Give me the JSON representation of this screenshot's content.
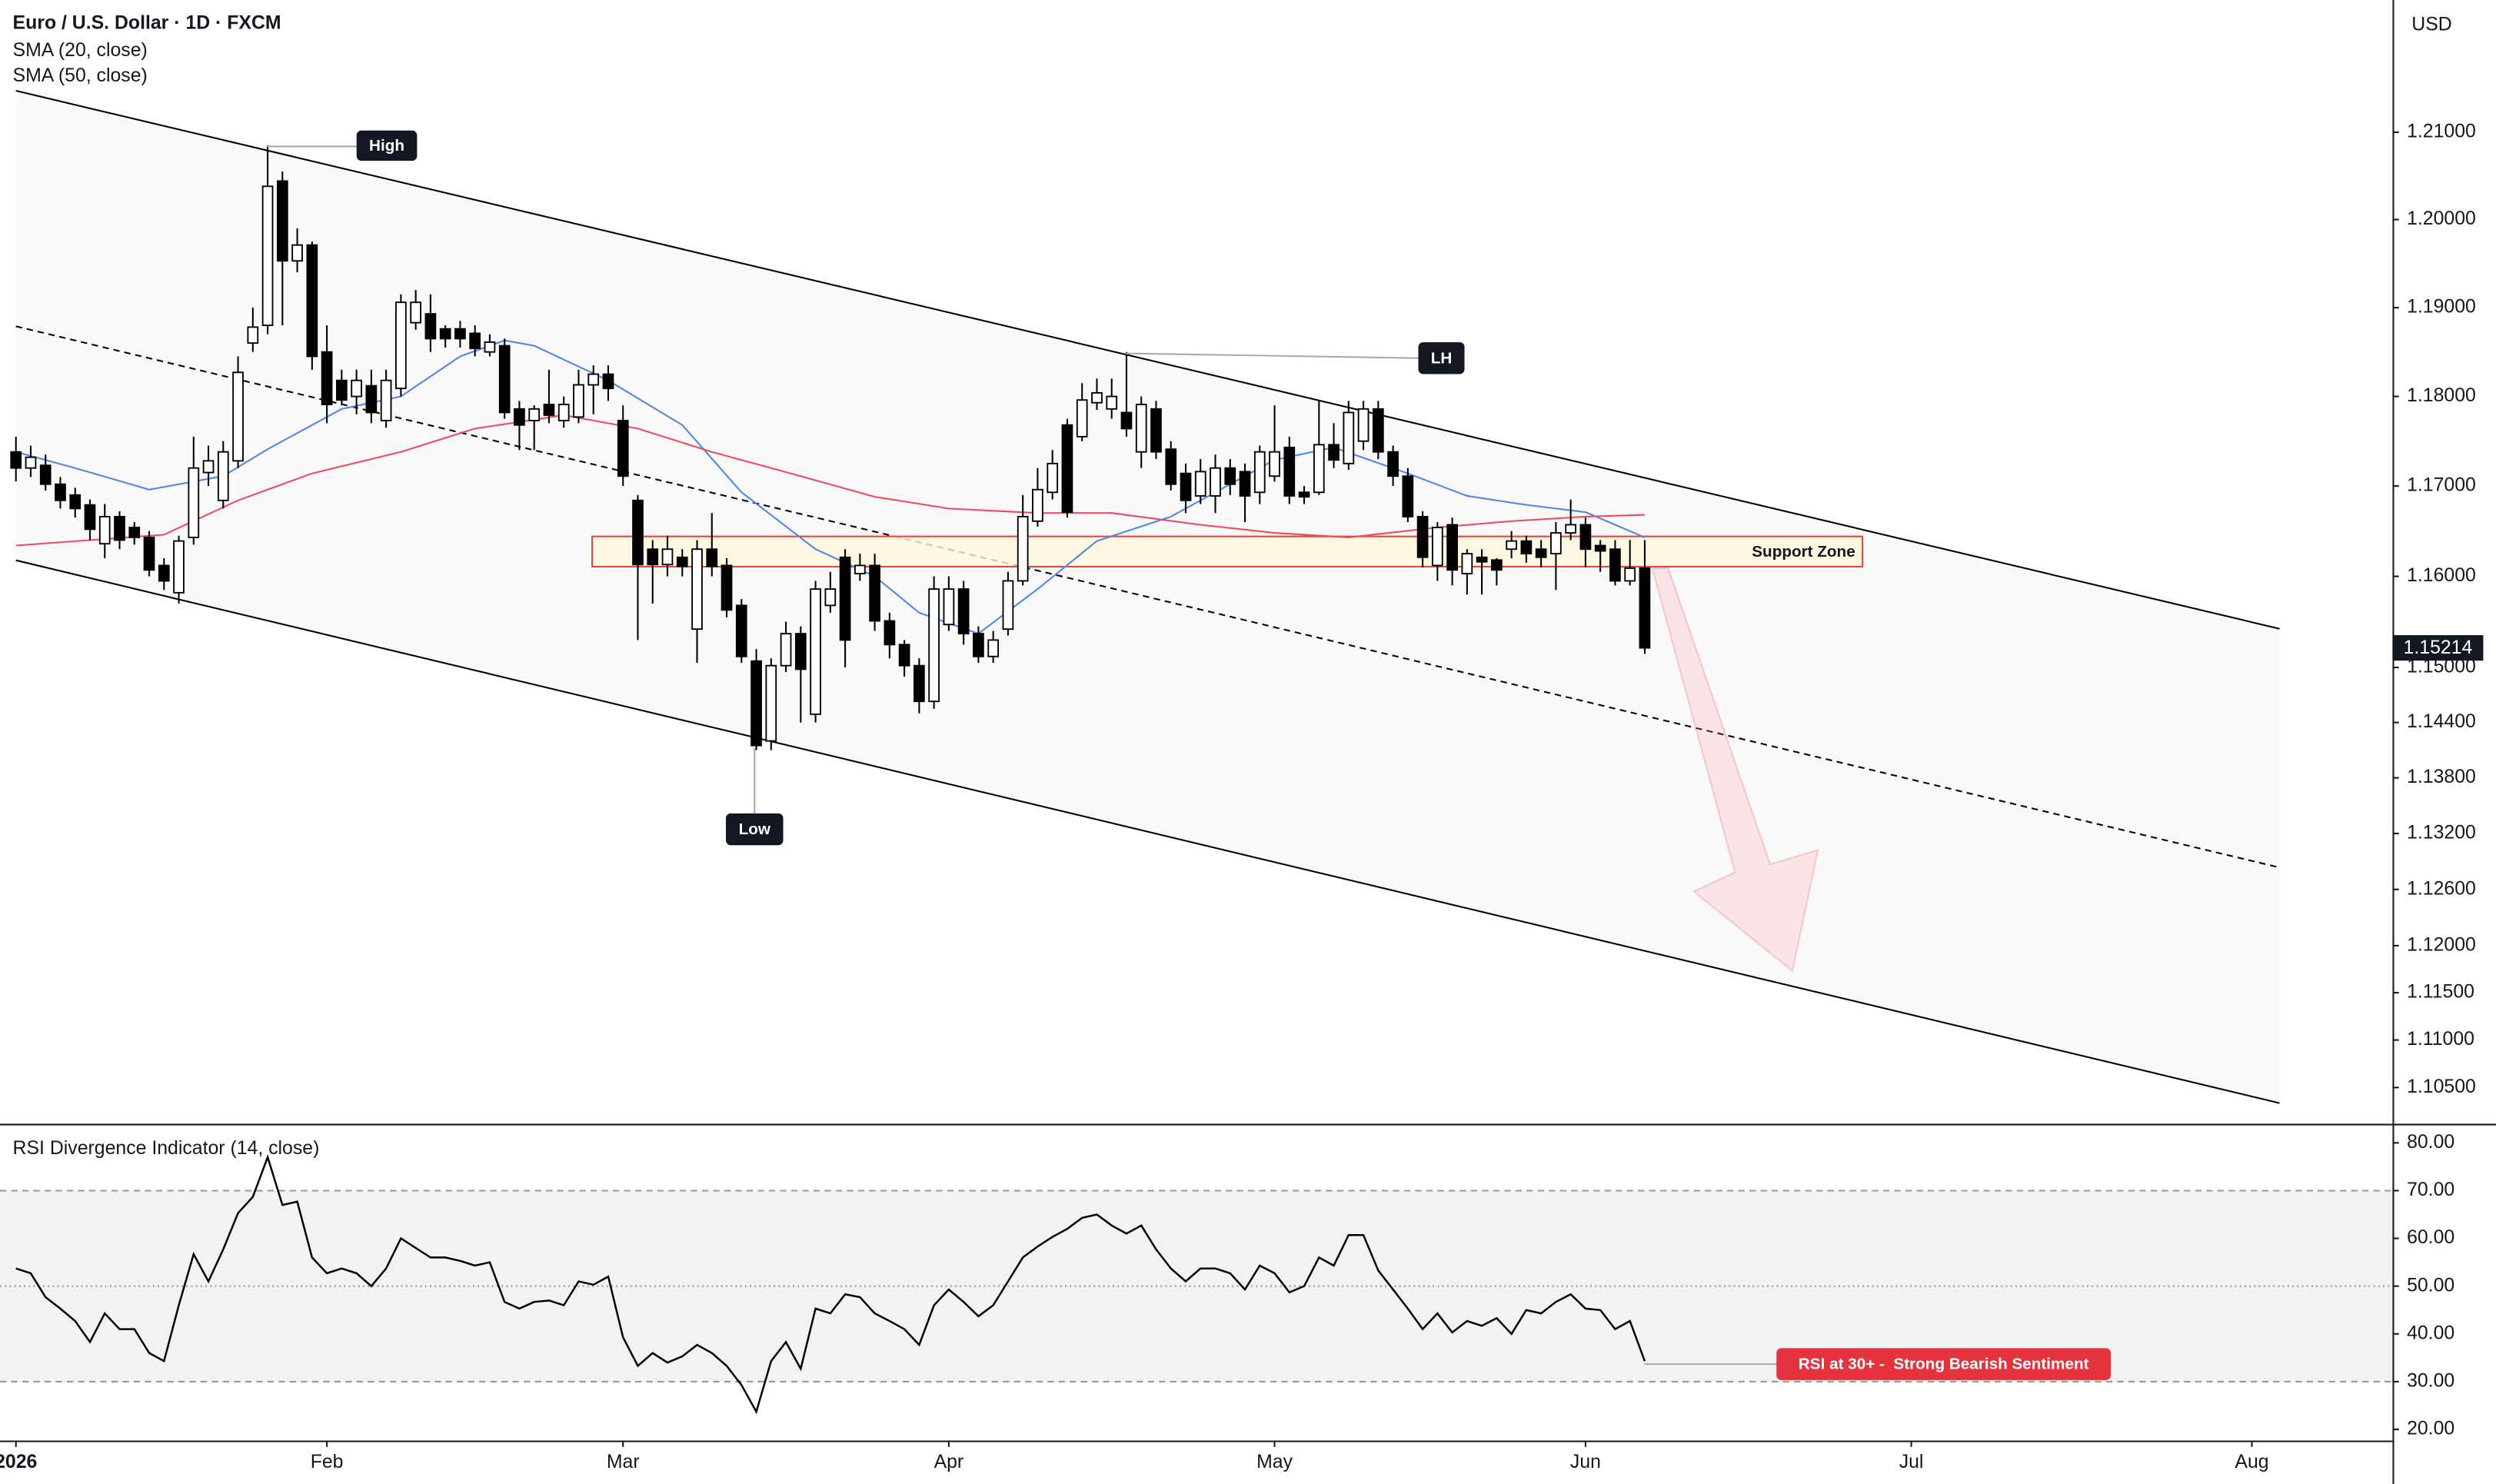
{
  "chart_data": [
    {
      "type": "candlestick",
      "title": "Euro / U.S. Dollar · 1D · FXCM",
      "y_label": "USD",
      "xlim": [
        -1.075,
        160.5
      ],
      "xticks": [
        {
          "value": 0,
          "label": "2026"
        },
        {
          "value": 21,
          "label": "Feb"
        },
        {
          "value": 41,
          "label": "Mar"
        },
        {
          "value": 63,
          "label": "Apr"
        },
        {
          "value": 85,
          "label": "May"
        },
        {
          "value": 106,
          "label": "Jun"
        },
        {
          "value": 128,
          "label": "Jul"
        },
        {
          "value": 151,
          "label": "Aug"
        }
      ],
      "ylim": [
        1.1012,
        1.2253
      ],
      "log_scale": true,
      "yticks": [
        {
          "value": 1.21,
          "label": "1.21000"
        },
        {
          "value": 1.2,
          "label": "1.20000"
        },
        {
          "value": 1.19,
          "label": "1.19000"
        },
        {
          "value": 1.18,
          "label": "1.18000"
        },
        {
          "value": 1.17,
          "label": "1.17000"
        },
        {
          "value": 1.16,
          "label": "1.16000"
        },
        {
          "value": 1.15,
          "label": "1.15000"
        },
        {
          "value": 1.144,
          "label": "1.14400"
        },
        {
          "value": 1.138,
          "label": "1.13800"
        },
        {
          "value": 1.132,
          "label": "1.13200"
        },
        {
          "value": 1.126,
          "label": "1.12600"
        },
        {
          "value": 1.12,
          "label": "1.12000"
        },
        {
          "value": 1.115,
          "label": "1.11500"
        },
        {
          "value": 1.11,
          "label": "1.11000"
        },
        {
          "value": 1.105,
          "label": "1.10500"
        }
      ],
      "up_color": "#ffffff",
      "down_color": "#000000",
      "open": [
        1.1738,
        1.172,
        1.1723,
        1.1702,
        1.169,
        1.1679,
        1.1636,
        1.1666,
        1.1654,
        1.1643,
        1.1612,
        1.1582,
        1.1643,
        1.1715,
        1.1684,
        1.1728,
        1.186,
        1.188,
        1.2044,
        1.1953,
        1.1971,
        1.185,
        1.1818,
        1.18,
        1.1812,
        1.1773,
        1.1809,
        1.1883,
        1.1893,
        1.1876,
        1.1876,
        1.1871,
        1.185,
        1.1857,
        1.1786,
        1.1773,
        1.1791,
        1.1773,
        1.1777,
        1.1813,
        1.1825,
        1.1773,
        1.1684,
        1.163,
        1.1613,
        1.1621,
        1.1542,
        1.163,
        1.1612,
        1.1568,
        1.1507,
        1.142,
        1.1502,
        1.1537,
        1.1449,
        1.1568,
        1.1621,
        1.1603,
        1.1612,
        1.1551,
        1.1525,
        1.1502,
        1.1463,
        1.1547,
        1.1586,
        1.1537,
        1.1512,
        1.1542,
        1.1595,
        1.1661,
        1.1693,
        1.1768,
        1.1755,
        1.1793,
        1.1786,
        1.1782,
        1.1738,
        1.1786,
        1.1741,
        1.1714,
        1.1689,
        1.1689,
        1.172,
        1.1716,
        1.1693,
        1.1711,
        1.1743,
        1.1693,
        1.1693,
        1.1746,
        1.1725,
        1.175,
        1.1786,
        1.1738,
        1.1711,
        1.1666,
        1.1612,
        1.1657,
        1.1603,
        1.1621,
        1.1618,
        1.163,
        1.1639,
        1.163,
        1.1625,
        1.1648,
        1.1657,
        1.1634,
        1.163,
        1.1595,
        1.1609
      ],
      "high": [
        1.1755,
        1.1745,
        1.1735,
        1.171,
        1.1698,
        1.1685,
        1.168,
        1.1672,
        1.166,
        1.165,
        1.162,
        1.1645,
        1.1755,
        1.1745,
        1.175,
        1.1845,
        1.19,
        1.2085,
        1.2055,
        1.199,
        1.1975,
        1.188,
        1.183,
        1.183,
        1.183,
        1.183,
        1.1915,
        1.192,
        1.1915,
        1.188,
        1.1885,
        1.188,
        1.187,
        1.1865,
        1.1795,
        1.179,
        1.183,
        1.18,
        1.183,
        1.1835,
        1.1835,
        1.179,
        1.169,
        1.164,
        1.1645,
        1.163,
        1.164,
        1.167,
        1.162,
        1.1575,
        1.152,
        1.151,
        1.155,
        1.1545,
        1.1595,
        1.1605,
        1.163,
        1.1625,
        1.1625,
        1.156,
        1.153,
        1.151,
        1.16,
        1.16,
        1.1595,
        1.1545,
        1.154,
        1.1605,
        1.169,
        1.172,
        1.174,
        1.1775,
        1.1815,
        1.182,
        1.182,
        1.185,
        1.18,
        1.1795,
        1.175,
        1.1725,
        1.173,
        1.1735,
        1.173,
        1.1725,
        1.1745,
        1.179,
        1.1755,
        1.17,
        1.1795,
        1.177,
        1.1795,
        1.1795,
        1.1795,
        1.1745,
        1.172,
        1.1672,
        1.166,
        1.1665,
        1.163,
        1.163,
        1.162,
        1.165,
        1.1645,
        1.164,
        1.166,
        1.1685,
        1.1665,
        1.164,
        1.164,
        1.164,
        1.164
      ],
      "low": [
        1.1705,
        1.171,
        1.1695,
        1.1675,
        1.1665,
        1.164,
        1.162,
        1.163,
        1.1635,
        1.16,
        1.1585,
        1.157,
        1.1635,
        1.17,
        1.1675,
        1.172,
        1.185,
        1.187,
        1.188,
        1.194,
        1.183,
        1.177,
        1.179,
        1.178,
        1.177,
        1.1765,
        1.18,
        1.1875,
        1.185,
        1.1855,
        1.1855,
        1.1845,
        1.1845,
        1.1775,
        1.174,
        1.174,
        1.177,
        1.1765,
        1.177,
        1.178,
        1.1795,
        1.17,
        1.153,
        1.157,
        1.16,
        1.16,
        1.1505,
        1.16,
        1.1555,
        1.1505,
        1.141,
        1.141,
        1.1495,
        1.144,
        1.144,
        1.156,
        1.15,
        1.1595,
        1.154,
        1.151,
        1.149,
        1.145,
        1.1455,
        1.154,
        1.1525,
        1.1505,
        1.1505,
        1.1535,
        1.159,
        1.1655,
        1.1685,
        1.1665,
        1.175,
        1.1785,
        1.1775,
        1.1755,
        1.172,
        1.173,
        1.1695,
        1.167,
        1.168,
        1.167,
        1.169,
        1.166,
        1.168,
        1.1705,
        1.168,
        1.168,
        1.169,
        1.172,
        1.1718,
        1.174,
        1.173,
        1.17,
        1.166,
        1.161,
        1.1595,
        1.159,
        1.158,
        1.158,
        1.159,
        1.162,
        1.1615,
        1.161,
        1.1585,
        1.164,
        1.161,
        1.1605,
        1.159,
        1.159,
        1.1515
      ],
      "close": [
        1.172,
        1.1732,
        1.1702,
        1.1684,
        1.1675,
        1.1652,
        1.1666,
        1.164,
        1.1643,
        1.1607,
        1.1595,
        1.1639,
        1.172,
        1.1728,
        1.1738,
        1.1827,
        1.1878,
        1.2038,
        1.1953,
        1.1971,
        1.1845,
        1.1791,
        1.1796,
        1.1818,
        1.1782,
        1.1818,
        1.1906,
        1.1906,
        1.1865,
        1.1865,
        1.1865,
        1.1854,
        1.1861,
        1.1782,
        1.1768,
        1.1786,
        1.1779,
        1.1791,
        1.1813,
        1.1825,
        1.1809,
        1.1711,
        1.1613,
        1.1613,
        1.163,
        1.1611,
        1.163,
        1.1611,
        1.1563,
        1.1512,
        1.1415,
        1.1502,
        1.1537,
        1.1498,
        1.1586,
        1.1586,
        1.153,
        1.1612,
        1.1551,
        1.1525,
        1.1502,
        1.1463,
        1.1586,
        1.1586,
        1.1537,
        1.1512,
        1.153,
        1.1595,
        1.1666,
        1.1696,
        1.1725,
        1.1671,
        1.1796,
        1.1804,
        1.18,
        1.1764,
        1.1791,
        1.1738,
        1.1702,
        1.1684,
        1.1716,
        1.172,
        1.1702,
        1.1689,
        1.1738,
        1.1738,
        1.1689,
        1.1688,
        1.1746,
        1.1729,
        1.1782,
        1.1786,
        1.1738,
        1.1711,
        1.1666,
        1.1621,
        1.1654,
        1.1607,
        1.1625,
        1.1616,
        1.1607,
        1.1639,
        1.1625,
        1.1621,
        1.1648,
        1.1657,
        1.163,
        1.1628,
        1.1595,
        1.1609,
        1.15214
      ],
      "series": [
        {
          "name": "SMA (20, close)",
          "color": "#4f86e8",
          "x": [
            0,
            4,
            9,
            14,
            17,
            22,
            26,
            30,
            33,
            35,
            40,
            45,
            49,
            54,
            58,
            61,
            65,
            69,
            73,
            78,
            82,
            85,
            89,
            94,
            98,
            102,
            106,
            110
          ],
          "values": [
            1.1738,
            1.172,
            1.1696,
            1.1711,
            1.1741,
            1.1786,
            1.18,
            1.1845,
            1.1863,
            1.1857,
            1.1818,
            1.1768,
            1.1693,
            1.163,
            1.16,
            1.156,
            1.1537,
            1.1586,
            1.1639,
            1.1666,
            1.1702,
            1.1729,
            1.1743,
            1.1714,
            1.1689,
            1.1679,
            1.1671,
            1.1643
          ]
        },
        {
          "name": "SMA (50, close)",
          "color": "#ee4b5b",
          "x": [
            0,
            10,
            15,
            20,
            26,
            31,
            37,
            42,
            47,
            53,
            58,
            63,
            69,
            74,
            80,
            85,
            90,
            96,
            101,
            106,
            110
          ],
          "values": [
            1.1634,
            1.1646,
            1.1684,
            1.1714,
            1.1738,
            1.1764,
            1.1779,
            1.1764,
            1.1738,
            1.1711,
            1.1688,
            1.1675,
            1.167,
            1.167,
            1.1657,
            1.1648,
            1.1643,
            1.1654,
            1.1661,
            1.1666,
            1.1668
          ]
        }
      ],
      "annotations": [
        "High",
        "LH",
        "Low",
        "Support Zone"
      ]
    },
    {
      "type": "line",
      "title": "RSI Divergence Indicator (14, close)",
      "xlim": [
        -1.075,
        160.5
      ],
      "ylim": [
        17.67,
        84
      ],
      "yticks": [
        {
          "value": 80,
          "label": "80.00"
        },
        {
          "value": 70,
          "label": "70.00"
        },
        {
          "value": 60,
          "label": "60.00"
        },
        {
          "value": 50,
          "label": "50.00"
        },
        {
          "value": 40,
          "label": "40.00"
        },
        {
          "value": 30,
          "label": "30.00"
        },
        {
          "value": 20,
          "label": "20.00"
        }
      ],
      "series": [
        {
          "color": "#000000",
          "values": [
            53.7,
            52.7,
            47.7,
            45.3,
            42.7,
            38.3,
            44.3,
            41,
            41,
            36,
            34.3,
            46,
            56.7,
            51,
            57.7,
            65.3,
            68.7,
            77,
            67,
            67.7,
            56,
            52.7,
            53.7,
            52.7,
            50,
            53.7,
            60,
            58,
            56,
            56,
            55.3,
            54.3,
            55,
            46.7,
            45.3,
            46.7,
            47,
            46,
            51,
            50.3,
            52,
            39.3,
            33.3,
            36,
            34,
            35.3,
            37.7,
            36,
            33.3,
            29.3,
            23.7,
            34.3,
            38.3,
            32.7,
            45.3,
            44.3,
            48.3,
            47.7,
            44.3,
            42.7,
            41,
            37.7,
            46,
            49.3,
            46.7,
            43.7,
            46,
            51,
            56,
            58.3,
            60.3,
            62,
            64.3,
            65,
            62.7,
            61,
            62.7,
            57.7,
            53.7,
            51,
            53.7,
            53.7,
            52.7,
            49.3,
            54.3,
            52.7,
            48.7,
            50,
            56,
            54.3,
            60.7,
            60.7,
            53.3,
            49.3,
            45.3,
            41,
            44.3,
            40.3,
            42.7,
            41.7,
            43.3,
            40,
            45,
            44.3,
            46.7,
            48.3,
            45.3,
            45,
            41,
            42.7,
            34.3
          ]
        }
      ],
      "annotations": [
        "RSI at 30+ -  Strong Bearish Sentiment"
      ]
    }
  ]
}
